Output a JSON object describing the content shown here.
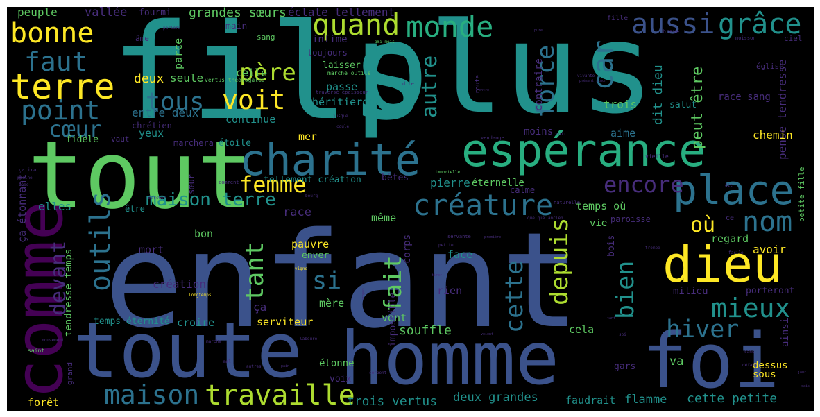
{
  "cloud": {
    "background": "#000000",
    "palette": [
      "#440154",
      "#472d7b",
      "#3b528b",
      "#2c728e",
      "#21918c",
      "#28ae80",
      "#5ec962",
      "#addc30",
      "#fde725"
    ],
    "words": [
      {
        "text": "enfant",
        "color": "#3b528b"
      },
      {
        "text": "fils",
        "color": "#21918c"
      },
      {
        "text": "plus",
        "color": "#21918c"
      },
      {
        "text": "tout",
        "color": "#5ec962"
      },
      {
        "text": "toute",
        "color": "#3b528b"
      },
      {
        "text": "homme",
        "color": "#3b528b"
      },
      {
        "text": "foi",
        "color": "#3b528b"
      },
      {
        "text": "comme",
        "color": "#440154"
      },
      {
        "text": "espérance",
        "color": "#28ae80"
      },
      {
        "text": "charité",
        "color": "#2c728e"
      },
      {
        "text": "dieu",
        "color": "#fde725"
      },
      {
        "text": "place",
        "color": "#2c728e"
      },
      {
        "text": "terre",
        "color": "#fde725"
      },
      {
        "text": "bonne",
        "color": "#fde725"
      },
      {
        "text": "quand",
        "color": "#addc30"
      },
      {
        "text": "monde",
        "color": "#28ae80"
      },
      {
        "text": "aussi",
        "color": "#3b528b"
      },
      {
        "text": "grâce",
        "color": "#21918c"
      },
      {
        "text": "car",
        "color": "#2c728e"
      },
      {
        "text": "faut",
        "color": "#2c728e"
      },
      {
        "text": "point",
        "color": "#2c728e"
      },
      {
        "text": "père",
        "color": "#addc30"
      },
      {
        "text": "voit",
        "color": "#fde725"
      },
      {
        "text": "tous",
        "color": "#2c728e"
      },
      {
        "text": "cœur",
        "color": "#2c728e"
      },
      {
        "text": "créature",
        "color": "#2c728e"
      },
      {
        "text": "femme",
        "color": "#fde725"
      },
      {
        "text": "nom",
        "color": "#2c728e"
      },
      {
        "text": "encore",
        "color": "#472d7b"
      },
      {
        "text": "où",
        "color": "#fde725"
      },
      {
        "text": "outils",
        "color": "#2c728e"
      },
      {
        "text": "maison",
        "color": "#2c728e"
      },
      {
        "text": "travaille",
        "color": "#addc30"
      },
      {
        "text": "mieux",
        "color": "#21918c"
      },
      {
        "text": "hiver",
        "color": "#2c728e"
      },
      {
        "text": "force",
        "color": "#2c728e"
      },
      {
        "text": "autre",
        "color": "#21918c"
      },
      {
        "text": "cette",
        "color": "#2c728e"
      },
      {
        "text": "depuis",
        "color": "#addc30"
      },
      {
        "text": "fait",
        "color": "#5ec962"
      },
      {
        "text": "tant",
        "color": "#5ec962"
      },
      {
        "text": "si",
        "color": "#2c728e"
      },
      {
        "text": "bien",
        "color": "#21918c"
      },
      {
        "text": "devant",
        "color": "#472d7b"
      },
      {
        "text": "peut être",
        "color": "#5ec962"
      },
      {
        "text": "dit dieu",
        "color": "#21918c"
      },
      {
        "text": "pense tendresse",
        "color": "#472d7b"
      },
      {
        "text": "maison terre",
        "color": "#21918c"
      },
      {
        "text": "grandes sœurs",
        "color": "#5ec962"
      },
      {
        "text": "éclate tellement",
        "color": "#472d7b"
      },
      {
        "text": "vallée",
        "color": "#472d7b"
      },
      {
        "text": "fourmi",
        "color": "#472d7b"
      },
      {
        "text": "peuple",
        "color": "#5ec962"
      },
      {
        "text": "héritieront",
        "color": "#21918c"
      },
      {
        "text": "entre deux",
        "color": "#2c728e"
      },
      {
        "text": "continue",
        "color": "#21918c"
      },
      {
        "text": "celle",
        "color": "#5ec962"
      },
      {
        "text": "seule",
        "color": "#5ec962"
      },
      {
        "text": "deux",
        "color": "#fde725"
      },
      {
        "text": "chrétien",
        "color": "#472d7b"
      },
      {
        "text": "yeux",
        "color": "#21918c"
      },
      {
        "text": "marchera",
        "color": "#472d7b"
      },
      {
        "text": "fidèle",
        "color": "#5ec962"
      },
      {
        "text": "vaut",
        "color": "#472d7b"
      },
      {
        "text": "étoile",
        "color": "#21918c"
      },
      {
        "text": "mer",
        "color": "#fde725"
      },
      {
        "text": "main",
        "color": "#472d7b"
      },
      {
        "text": "parce",
        "color": "#5ec962"
      },
      {
        "text": "infime",
        "color": "#472d7b"
      },
      {
        "text": "toujours",
        "color": "#472d7b"
      },
      {
        "text": "laisser",
        "color": "#5ec962"
      },
      {
        "text": "passe",
        "color": "#21918c"
      },
      {
        "text": "trois",
        "color": "#5ec962"
      },
      {
        "text": "race sang",
        "color": "#472d7b"
      },
      {
        "text": "contraire",
        "color": "#472d7b"
      },
      {
        "text": "salut",
        "color": "#21918c"
      },
      {
        "text": "église",
        "color": "#472d7b"
      },
      {
        "text": "ciel",
        "color": "#472d7b"
      },
      {
        "text": "sang",
        "color": "#5ec962"
      },
      {
        "text": "âme",
        "color": "#472d7b"
      },
      {
        "text": "aime",
        "color": "#2c728e"
      },
      {
        "text": "moins",
        "color": "#472d7b"
      },
      {
        "text": "chemin",
        "color": "#fde725"
      },
      {
        "text": "tellement création",
        "color": "#21918c"
      },
      {
        "text": "bêtes",
        "color": "#472d7b"
      },
      {
        "text": "pierre",
        "color": "#21918c"
      },
      {
        "text": "éternelle",
        "color": "#5ec962"
      },
      {
        "text": "calme",
        "color": "#472d7b"
      },
      {
        "text": "temps où",
        "color": "#5ec962"
      },
      {
        "text": "paroisse",
        "color": "#472d7b"
      },
      {
        "text": "vie",
        "color": "#5ec962"
      },
      {
        "text": "même",
        "color": "#5ec962"
      },
      {
        "text": "race",
        "color": "#472d7b"
      },
      {
        "text": "elles",
        "color": "#21918c"
      },
      {
        "text": "être",
        "color": "#21918c"
      },
      {
        "text": "sœur",
        "color": "#472d7b"
      },
      {
        "text": "ça étonnant",
        "color": "#472d7b"
      },
      {
        "text": "bon",
        "color": "#5ec962"
      },
      {
        "text": "mort",
        "color": "#472d7b"
      },
      {
        "text": "pauvre",
        "color": "#fde725"
      },
      {
        "text": "enver",
        "color": "#5ec962"
      },
      {
        "text": "face",
        "color": "#21918c"
      },
      {
        "text": "corps",
        "color": "#472d7b"
      },
      {
        "text": "bois",
        "color": "#472d7b"
      },
      {
        "text": "regard",
        "color": "#5ec962"
      },
      {
        "text": "avoir",
        "color": "#fde725"
      },
      {
        "text": "milieu",
        "color": "#472d7b"
      },
      {
        "text": "porteront",
        "color": "#472d7b"
      },
      {
        "text": "création",
        "color": "#472d7b"
      },
      {
        "text": "mère",
        "color": "#5ec962"
      },
      {
        "text": "rien",
        "color": "#472d7b"
      },
      {
        "text": "impossible",
        "color": "#472d7b"
      },
      {
        "text": "tendresse temps",
        "color": "#5ec962"
      },
      {
        "text": "ça",
        "color": "#472d7b"
      },
      {
        "text": "temps éternité",
        "color": "#21918c"
      },
      {
        "text": "croire",
        "color": "#21918c"
      },
      {
        "text": "serviteur",
        "color": "#fde725"
      },
      {
        "text": "vent",
        "color": "#5ec962"
      },
      {
        "text": "souffle",
        "color": "#5ec962"
      },
      {
        "text": "cela",
        "color": "#5ec962"
      },
      {
        "text": "ainsi",
        "color": "#472d7b"
      },
      {
        "text": "va",
        "color": "#5ec962"
      },
      {
        "text": "gars",
        "color": "#472d7b"
      },
      {
        "text": "dessus",
        "color": "#fde725"
      },
      {
        "text": "sous",
        "color": "#fde725"
      },
      {
        "text": "étonne",
        "color": "#5ec962"
      },
      {
        "text": "voix",
        "color": "#472d7b"
      },
      {
        "text": "grand",
        "color": "#472d7b"
      },
      {
        "text": "forêt",
        "color": "#fde725"
      },
      {
        "text": "trois vertus",
        "color": "#21918c"
      },
      {
        "text": "deux grandes",
        "color": "#21918c"
      },
      {
        "text": "faudrait",
        "color": "#21918c"
      },
      {
        "text": "flamme",
        "color": "#21918c"
      },
      {
        "text": "cette petite",
        "color": "#21918c"
      },
      {
        "text": "petite fille",
        "color": "#5ec962"
      },
      {
        "text": "vertus théologales",
        "color": "#5ec962"
      },
      {
        "text": "marche outils",
        "color": "#5ec962"
      },
      {
        "text": "traversé épaisseur",
        "color": "#472d7b"
      },
      {
        "text": "ami mois",
        "color": "#5ec962"
      },
      {
        "text": "fille",
        "color": "#472d7b"
      },
      {
        "text": "brave",
        "color": "#472d7b"
      },
      {
        "text": "moisson",
        "color": "#472d7b"
      },
      {
        "text": "parlera",
        "color": "#472d7b"
      },
      {
        "text": "route",
        "color": "#472d7b"
      },
      {
        "text": "entre",
        "color": "#472d7b"
      },
      {
        "text": "dire",
        "color": "#472d7b"
      },
      {
        "text": "jusque",
        "color": "#472d7b"
      },
      {
        "text": "coule",
        "color": "#472d7b"
      },
      {
        "text": "vendange",
        "color": "#472d7b"
      },
      {
        "text": "immortelle",
        "color": "#5ec962"
      },
      {
        "text": "voir",
        "color": "#472d7b"
      },
      {
        "text": "vieille",
        "color": "#472d7b"
      },
      {
        "text": "naturelle",
        "color": "#472d7b"
      },
      {
        "text": "comment",
        "color": "#472d7b"
      },
      {
        "text": "plaine",
        "color": "#472d7b"
      },
      {
        "text": "ça ira",
        "color": "#472d7b"
      },
      {
        "text": "sème",
        "color": "#472d7b"
      },
      {
        "text": "marcher",
        "color": "#472d7b"
      },
      {
        "text": "quelque",
        "color": "#472d7b"
      },
      {
        "text": "ancien",
        "color": "#472d7b"
      },
      {
        "text": "servante",
        "color": "#472d7b"
      },
      {
        "text": "première",
        "color": "#472d7b"
      },
      {
        "text": "petite",
        "color": "#472d7b"
      },
      {
        "text": "facile",
        "color": "#472d7b"
      },
      {
        "text": "trompé",
        "color": "#472d7b"
      },
      {
        "text": "vigne",
        "color": "#fde725"
      },
      {
        "text": "longtemps",
        "color": "#fde725"
      },
      {
        "text": "propos",
        "color": "#472d7b"
      },
      {
        "text": "tirer",
        "color": "#472d7b"
      },
      {
        "text": "tant",
        "color": "#472d7b"
      },
      {
        "text": "soi",
        "color": "#472d7b"
      },
      {
        "text": "mouvement",
        "color": "#472d7b"
      },
      {
        "text": "saint",
        "color": "#5ec962"
      },
      {
        "text": "marche",
        "color": "#472d7b"
      },
      {
        "text": "laboure",
        "color": "#472d7b"
      },
      {
        "text": "mal",
        "color": "#472d7b"
      },
      {
        "text": "autres",
        "color": "#472d7b"
      },
      {
        "text": "pain",
        "color": "#472d7b"
      },
      {
        "text": "serpent",
        "color": "#472d7b"
      },
      {
        "text": "sans",
        "color": "#472d7b"
      },
      {
        "text": "défait",
        "color": "#472d7b"
      },
      {
        "text": "ce",
        "color": "#472d7b"
      },
      {
        "text": "dit",
        "color": "#472d7b"
      },
      {
        "text": "bourg",
        "color": "#472d7b"
      },
      {
        "text": "vivante",
        "color": "#472d7b"
      },
      {
        "text": "présent sinon",
        "color": "#472d7b"
      },
      {
        "text": "pure",
        "color": "#472d7b"
      },
      {
        "text": "voient",
        "color": "#472d7b"
      },
      {
        "text": "jour",
        "color": "#472d7b"
      },
      {
        "text": "sais",
        "color": "#472d7b"
      }
    ]
  }
}
